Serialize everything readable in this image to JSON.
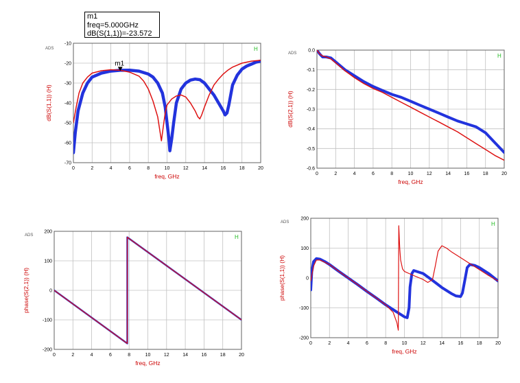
{
  "marker_readout": {
    "name": "m1",
    "freq_line": "freq=5.000GHz",
    "value_line": "dB(S(1,1))=-23.572"
  },
  "chart_data": [
    {
      "id": "p1",
      "type": "line",
      "tool_tag": "ADS",
      "corner_tag": "H",
      "xlabel": "freq, GHz",
      "ylabel": "dB(S(1,1))  (H)",
      "xlim": [
        0,
        20
      ],
      "ylim": [
        -70,
        -10
      ],
      "xticks": [
        0,
        2,
        4,
        6,
        8,
        10,
        12,
        14,
        16,
        18,
        20
      ],
      "yticks": [
        -70,
        -60,
        -50,
        -40,
        -30,
        -20,
        -10
      ],
      "marker": {
        "name": "m1",
        "x": 5.0,
        "y": -23.572
      },
      "series": [
        {
          "name": "blue",
          "color": "#2233dd",
          "width": 4.5,
          "x": [
            0,
            0.2,
            0.5,
            1,
            1.5,
            2,
            3,
            4,
            5,
            6,
            7,
            8,
            8.5,
            9,
            9.5,
            9.8,
            10,
            10.2,
            10.3,
            10.5,
            10.7,
            11,
            11.5,
            12,
            12.5,
            13,
            13.5,
            14,
            14.5,
            15,
            15.5,
            16,
            16.2,
            16.4,
            16.6,
            16.8,
            17,
            17.5,
            18,
            18.5,
            19,
            19.5,
            20
          ],
          "y": [
            -65,
            -55,
            -44,
            -35,
            -30,
            -27,
            -25,
            -24,
            -23.57,
            -23.5,
            -24,
            -25.5,
            -27,
            -30,
            -35,
            -42,
            -50,
            -58,
            -64,
            -58,
            -50,
            -40,
            -33,
            -30,
            -28.5,
            -28,
            -28.3,
            -30,
            -33,
            -36,
            -40,
            -44,
            -46,
            -45,
            -41,
            -36,
            -31,
            -26,
            -23,
            -21.5,
            -20.5,
            -19.5,
            -19
          ]
        },
        {
          "name": "red",
          "color": "#dd1111",
          "width": 1.5,
          "x": [
            0,
            0.3,
            0.6,
            1,
            1.5,
            2,
            3,
            4,
            5,
            6,
            7,
            7.5,
            8,
            8.5,
            9,
            9.2,
            9.4,
            9.6,
            9.8,
            10,
            10.5,
            11,
            11.5,
            12,
            12.5,
            13,
            13.3,
            13.5,
            13.7,
            14,
            14.5,
            15,
            15.5,
            16,
            16.5,
            17,
            18,
            19,
            20
          ],
          "y": [
            -50,
            -42,
            -35,
            -30,
            -27,
            -25,
            -23.8,
            -23.3,
            -23.6,
            -24.5,
            -26.5,
            -29,
            -33,
            -39,
            -47,
            -53,
            -59,
            -52,
            -45,
            -41,
            -38,
            -36.5,
            -36,
            -37,
            -40,
            -44,
            -47,
            -48,
            -46,
            -42,
            -36,
            -31,
            -28,
            -25.5,
            -23.5,
            -22,
            -20,
            -19,
            -18.5
          ]
        }
      ]
    },
    {
      "id": "p2",
      "type": "line",
      "tool_tag": "ADS",
      "corner_tag": "H",
      "xlabel": "freq, GHz",
      "ylabel": "dB(S(2,1))  (H)",
      "xlim": [
        0,
        20
      ],
      "ylim": [
        -0.6,
        0.0
      ],
      "xticks": [
        0,
        2,
        4,
        6,
        8,
        10,
        12,
        14,
        16,
        18,
        20
      ],
      "yticks": [
        -0.6,
        -0.5,
        -0.4,
        -0.3,
        -0.2,
        -0.1,
        0.0
      ],
      "ytick_labels": [
        "-0.6",
        "-0.5",
        "-0.4",
        "-0.3",
        "-0.2",
        "-0.1",
        "0.0"
      ],
      "series": [
        {
          "name": "blue",
          "color": "#2233dd",
          "width": 4,
          "x": [
            0,
            0.3,
            0.6,
            1,
            1.5,
            2,
            3,
            4,
            5,
            6,
            7,
            8,
            9,
            10,
            11,
            12,
            13,
            14,
            15,
            16,
            17,
            18,
            19,
            20
          ],
          "y": [
            0,
            -0.02,
            -0.035,
            -0.035,
            -0.04,
            -0.06,
            -0.1,
            -0.13,
            -0.16,
            -0.185,
            -0.205,
            -0.225,
            -0.24,
            -0.26,
            -0.28,
            -0.3,
            -0.32,
            -0.34,
            -0.36,
            -0.375,
            -0.39,
            -0.42,
            -0.47,
            -0.52
          ]
        },
        {
          "name": "red",
          "color": "#dd1111",
          "width": 1.5,
          "x": [
            0,
            0.3,
            0.6,
            1,
            1.5,
            2,
            3,
            4,
            5,
            6,
            7,
            8,
            9,
            10,
            11,
            12,
            13,
            14,
            15,
            16,
            17,
            18,
            19,
            20
          ],
          "y": [
            0,
            -0.02,
            -0.03,
            -0.035,
            -0.045,
            -0.065,
            -0.105,
            -0.14,
            -0.17,
            -0.195,
            -0.215,
            -0.24,
            -0.265,
            -0.29,
            -0.315,
            -0.34,
            -0.365,
            -0.39,
            -0.415,
            -0.445,
            -0.475,
            -0.505,
            -0.535,
            -0.56
          ]
        }
      ]
    },
    {
      "id": "p3",
      "type": "line",
      "tool_tag": "ADS",
      "corner_tag": "H",
      "xlabel": "freq, GHz",
      "ylabel": "phase(S(2,1))  (H)",
      "xlim": [
        0,
        20
      ],
      "ylim": [
        -200,
        200
      ],
      "xticks": [
        0,
        2,
        4,
        6,
        8,
        10,
        12,
        14,
        16,
        18,
        20
      ],
      "yticks": [
        -200,
        -100,
        0,
        100,
        200
      ],
      "series": [
        {
          "name": "blue",
          "color": "#2233dd",
          "width": 2.5,
          "x": [
            0,
            7.8,
            7.8,
            20
          ],
          "y": [
            0,
            -180,
            180,
            -100
          ]
        },
        {
          "name": "red",
          "color": "#dd1111",
          "width": 1.2,
          "x": [
            0,
            7.8,
            7.8,
            20
          ],
          "y": [
            0,
            -180,
            180,
            -100
          ]
        }
      ]
    },
    {
      "id": "p4",
      "type": "line",
      "tool_tag": "ADS",
      "corner_tag": "H",
      "xlabel": "freq, GHz",
      "ylabel": "phase(S(1,1))  (H)",
      "xlim": [
        0,
        20
      ],
      "ylim": [
        -200,
        200
      ],
      "xticks": [
        0,
        2,
        4,
        6,
        8,
        10,
        12,
        14,
        16,
        18,
        20
      ],
      "yticks": [
        -200,
        -100,
        0,
        100,
        200
      ],
      "series": [
        {
          "name": "blue",
          "color": "#2233dd",
          "width": 4,
          "x": [
            0,
            0.1,
            0.3,
            0.6,
            1,
            1.5,
            2,
            3,
            4,
            5,
            6,
            7,
            8,
            9,
            10,
            10.3,
            10.5,
            10.6,
            10.8,
            11,
            12,
            13,
            14,
            15,
            15.5,
            16,
            16.2,
            16.5,
            16.7,
            17,
            17.5,
            18,
            19,
            20
          ],
          "y": [
            -40,
            20,
            55,
            65,
            63,
            55,
            45,
            22,
            0,
            -22,
            -45,
            -67,
            -90,
            -110,
            -130,
            -133,
            -100,
            -30,
            15,
            25,
            15,
            -8,
            -32,
            -52,
            -60,
            -62,
            -50,
            0,
            35,
            45,
            42,
            35,
            15,
            -10
          ]
        },
        {
          "name": "red",
          "color": "#dd1111",
          "width": 1.2,
          "x": [
            0,
            0.3,
            0.6,
            1,
            2,
            3,
            4,
            5,
            6,
            7,
            8,
            8.8,
            9.2,
            9.35,
            9.4,
            9.5,
            9.6,
            9.8,
            10,
            10.5,
            11,
            12,
            12.5,
            13,
            13.3,
            13.6,
            14,
            14.5,
            15,
            16,
            17,
            18,
            19,
            20
          ],
          "y": [
            -10,
            40,
            60,
            60,
            45,
            22,
            0,
            -22,
            -45,
            -67,
            -90,
            -115,
            -150,
            -175,
            175,
            100,
            60,
            30,
            22,
            15,
            8,
            -5,
            -15,
            -5,
            40,
            90,
            108,
            100,
            88,
            68,
            48,
            28,
            8,
            -10
          ]
        }
      ]
    }
  ]
}
